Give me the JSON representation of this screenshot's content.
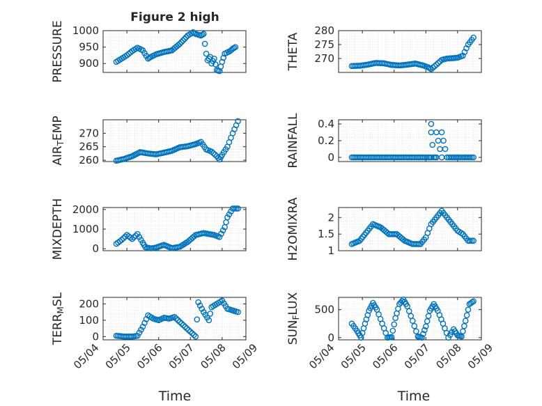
{
  "figure": {
    "title": "Figure 2 high",
    "xlabel": "Time"
  },
  "chart_data": [
    {
      "type": "scatter",
      "title": "Figure 2 high",
      "ylabel": "PRESSURE",
      "xlabel": "",
      "xlim": [
        "05/04 06:00",
        "05/08 18:00"
      ],
      "ylim": [
        873,
        1000
      ],
      "yticks": [
        900,
        950,
        1000
      ],
      "grid": true,
      "series": [
        {
          "x": [
            "05/04 16:00",
            "05/04 20:00",
            "05/05 00:00",
            "05/05 04:00",
            "05/05 08:00",
            "05/05 12:00",
            "05/05 16:00",
            "05/05 18:00",
            "05/05 22:00",
            "05/06 04:00",
            "05/06 10:00",
            "05/06 16:00",
            "05/06 22:00",
            "05/07 02:00",
            "05/07 04:00",
            "05/07 08:00",
            "05/07 10:00",
            "05/07 12:00",
            "05/07 13:00",
            "05/07 15:00",
            "05/07 16:00",
            "05/07 18:00",
            "05/07 20:00",
            "05/07 22:00",
            "05/08 00:00",
            "05/08 02:00",
            "05/08 06:00",
            "05/08 08:00",
            "05/08 10:00"
          ],
          "values": [
            905,
            915,
            925,
            938,
            948,
            940,
            915,
            920,
            928,
            935,
            940,
            960,
            985,
            995,
            990,
            985,
            990,
            930,
            910,
            920,
            900,
            915,
            880,
            877,
            905,
            930,
            938,
            945,
            950
          ]
        }
      ]
    },
    {
      "type": "scatter",
      "ylabel": "THETA",
      "xlabel": "",
      "xlim": [
        "05/04 06:00",
        "05/08 18:00"
      ],
      "ylim": [
        265,
        280
      ],
      "yticks": [
        270,
        275,
        280
      ],
      "grid": true,
      "series": [
        {
          "x": [
            "05/04 16:00",
            "05/04 22:00",
            "05/05 04:00",
            "05/05 10:00",
            "05/05 16:00",
            "05/05 22:00",
            "05/06 04:00",
            "05/06 10:00",
            "05/06 16:00",
            "05/06 22:00",
            "05/07 02:00",
            "05/07 04:00",
            "05/07 08:00",
            "05/07 12:00",
            "05/07 16:00",
            "05/07 20:00",
            "05/08 00:00",
            "05/08 04:00",
            "05/08 08:00",
            "05/08 12:00"
          ],
          "values": [
            267.3,
            267.4,
            267.8,
            268.4,
            268.3,
            267.7,
            267.5,
            267.8,
            268.2,
            267.5,
            266.8,
            266.2,
            267.8,
            269.5,
            270.0,
            270.1,
            270.3,
            271.0,
            275.0,
            277.5
          ]
        }
      ]
    },
    {
      "type": "scatter",
      "ylabel": "AIR_TEMP",
      "xlabel": "",
      "xlim": [
        "05/04 06:00",
        "05/08 18:00"
      ],
      "ylim": [
        259.5,
        275
      ],
      "yticks": [
        260,
        265,
        270
      ],
      "grid": true,
      "series": [
        {
          "x": [
            "05/04 16:00",
            "05/04 22:00",
            "05/05 04:00",
            "05/05 10:00",
            "05/05 16:00",
            "05/05 22:00",
            "05/06 04:00",
            "05/06 10:00",
            "05/06 16:00",
            "05/06 22:00",
            "05/07 04:00",
            "05/07 08:00",
            "05/07 12:00",
            "05/07 16:00",
            "05/07 20:00",
            "05/07 22:00",
            "05/08 00:00",
            "05/08 04:00",
            "05/08 08:00",
            "05/08 12:00"
          ],
          "values": [
            259.8,
            260.5,
            261.5,
            263.0,
            262.5,
            262.2,
            262.8,
            263.5,
            264.8,
            265.2,
            266.0,
            266.8,
            264.0,
            263.2,
            261.5,
            260.3,
            262.0,
            265.0,
            270.0,
            274.5
          ]
        }
      ]
    },
    {
      "type": "scatter",
      "ylabel": "RAINFALL",
      "xlabel": "",
      "xlim": [
        "05/04 06:00",
        "05/08 18:00"
      ],
      "ylim": [
        -0.05,
        0.45
      ],
      "yticks": [
        0,
        0.2,
        0.4
      ],
      "grid": true,
      "series": [
        {
          "x": [
            "05/04 16:00",
            "05/04 22:00",
            "05/05 04:00",
            "05/05 10:00",
            "05/05 16:00",
            "05/05 22:00",
            "05/06 04:00",
            "05/06 10:00",
            "05/06 16:00",
            "05/06 22:00",
            "05/07 02:00",
            "05/07 04:00",
            "05/07 06:00",
            "05/07 08:00",
            "05/07 12:00",
            "05/07 16:00",
            "05/07 20:00",
            "05/08 00:00",
            "05/08 04:00",
            "05/08 08:00",
            "05/08 12:00",
            "05/07 04:00",
            "05/07 04:00",
            "05/07 08:00",
            "05/07 12:00"
          ],
          "values": [
            0,
            0,
            0,
            0,
            0,
            0,
            0,
            0,
            0,
            0,
            0,
            0,
            0,
            0,
            0,
            0,
            0,
            0,
            0,
            0,
            0,
            0.4,
            0.3,
            0.3,
            0.3
          ]
        }
      ]
    },
    {
      "type": "scatter",
      "ylabel": "MIXDEPTH",
      "xlabel": "",
      "xlim": [
        "05/04 06:00",
        "05/08 18:00"
      ],
      "ylim": [
        -100,
        2100
      ],
      "yticks": [
        0,
        1000,
        2000
      ],
      "grid": true,
      "series": [
        {
          "x": [
            "05/04 16:00",
            "05/04 20:00",
            "05/05 00:00",
            "05/05 04:00",
            "05/05 08:00",
            "05/05 12:00",
            "05/05 14:00",
            "05/05 18:00",
            "05/05 22:00",
            "05/06 04:00",
            "05/06 10:00",
            "05/06 16:00",
            "05/06 22:00",
            "05/07 04:00",
            "05/07 10:00",
            "05/07 14:00",
            "05/07 18:00",
            "05/07 22:00",
            "05/08 02:00",
            "05/08 04:00",
            "05/08 08:00",
            "05/08 12:00"
          ],
          "values": [
            250,
            450,
            700,
            500,
            750,
            300,
            80,
            20,
            60,
            200,
            30,
            100,
            350,
            700,
            800,
            750,
            700,
            600,
            1100,
            1600,
            2050,
            2050
          ]
        }
      ]
    },
    {
      "type": "scatter",
      "ylabel": "H2OMIXRA",
      "xlabel": "",
      "xlim": [
        "05/04 06:00",
        "05/08 18:00"
      ],
      "ylim": [
        1,
        2.3
      ],
      "yticks": [
        1,
        1.5,
        2
      ],
      "grid": true,
      "series": [
        {
          "x": [
            "05/04 16:00",
            "05/04 22:00",
            "05/05 04:00",
            "05/05 08:00",
            "05/05 14:00",
            "05/05 20:00",
            "05/06 02:00",
            "05/06 08:00",
            "05/06 14:00",
            "05/06 20:00",
            "05/07 00:00",
            "05/07 04:00",
            "05/07 08:00",
            "05/07 12:00",
            "05/07 16:00",
            "05/07 20:00",
            "05/08 00:00",
            "05/08 04:00",
            "05/08 08:00",
            "05/08 12:00"
          ],
          "values": [
            1.2,
            1.3,
            1.6,
            1.8,
            1.7,
            1.5,
            1.5,
            1.3,
            1.2,
            1.2,
            1.4,
            1.8,
            2.0,
            2.2,
            2.0,
            1.8,
            1.6,
            1.5,
            1.3,
            1.3
          ]
        }
      ]
    },
    {
      "type": "scatter",
      "ylabel": "TERR_MSL",
      "xlabel": "Time",
      "xlim": [
        "05/04 06:00",
        "05/08 18:00"
      ],
      "ylim": [
        -20,
        240
      ],
      "yticks": [
        0,
        100,
        200
      ],
      "xticks": [
        "05/04",
        "05/05",
        "05/06",
        "05/07",
        "05/08",
        "05/09"
      ],
      "grid": true,
      "series": [
        {
          "x": [
            "05/04 16:00",
            "05/04 22:00",
            "05/05 04:00",
            "05/05 08:00",
            "05/05 12:00",
            "05/05 16:00",
            "05/05 20:00",
            "05/06 00:00",
            "05/06 04:00",
            "05/06 08:00",
            "05/06 12:00",
            "05/06 16:00",
            "05/06 20:00",
            "05/07 00:00",
            "05/07 04:00",
            "05/07 06:00",
            "05/07 10:00",
            "05/07 14:00",
            "05/07 16:00",
            "05/07 20:00",
            "05/08 00:00",
            "05/08 04:00",
            "05/08 08:00",
            "05/08 12:00"
          ],
          "values": [
            5,
            0,
            0,
            5,
            60,
            130,
            110,
            100,
            115,
            110,
            120,
            90,
            60,
            30,
            0,
            210,
            150,
            100,
            180,
            200,
            220,
            170,
            160,
            150
          ]
        }
      ]
    },
    {
      "type": "scatter",
      "ylabel": "SUN_FLUX",
      "xlabel": "Time",
      "xlim": [
        "05/04 06:00",
        "05/08 18:00"
      ],
      "ylim": [
        -40,
        720
      ],
      "yticks": [
        0,
        500
      ],
      "xticks": [
        "05/04",
        "05/05",
        "05/06",
        "05/07",
        "05/08",
        "05/09"
      ],
      "grid": true,
      "series": [
        {
          "x": [
            "05/04 16:00",
            "05/04 20:00",
            "05/04 23:00",
            "05/05 02:00",
            "05/05 05:00",
            "05/05 08:00",
            "05/05 11:00",
            "05/05 15:00",
            "05/05 19:00",
            "05/05 22:00",
            "05/06 01:00",
            "05/06 04:00",
            "05/06 07:00",
            "05/06 10:00",
            "05/06 14:00",
            "05/06 18:00",
            "05/06 21:00",
            "05/07 00:00",
            "05/07 03:00",
            "05/07 06:00",
            "05/07 09:00",
            "05/07 13:00",
            "05/07 17:00",
            "05/07 21:00",
            "05/08 00:00",
            "05/08 03:00",
            "05/08 06:00",
            "05/08 09:00",
            "05/08 12:00"
          ],
          "values": [
            250,
            120,
            0,
            250,
            480,
            620,
            500,
            250,
            0,
            10,
            350,
            600,
            680,
            560,
            300,
            20,
            0,
            200,
            480,
            600,
            480,
            250,
            0,
            150,
            40,
            20,
            300,
            600,
            650
          ]
        }
      ]
    }
  ]
}
